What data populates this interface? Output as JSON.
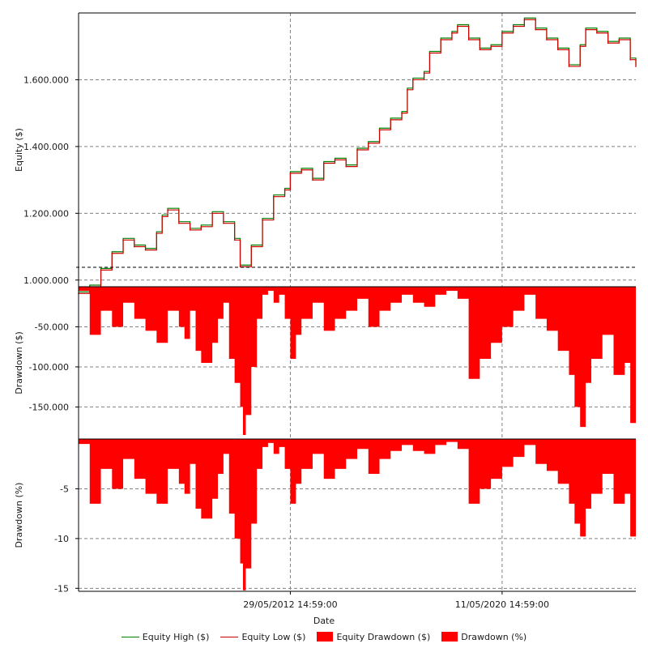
{
  "chart_data": {
    "type": "line",
    "xlabel": "Date",
    "x_ticks": [
      "29/05/2012 14:59:00",
      "11/05/2020 14:59:00"
    ],
    "x_tick_positions": [
      0.38,
      0.76
    ],
    "colors": {
      "equity_high": "#008000",
      "equity_low": "#cc0000",
      "drawdown_fill": "#ff0000",
      "grid": "#808080"
    },
    "panels": [
      {
        "id": "equity",
        "ylabel": "Equity ($)",
        "ylim": [
          980000,
          1800000
        ],
        "yticks": [
          1000000,
          1200000,
          1400000,
          1600000
        ],
        "ytick_labels": [
          "1.000.000",
          "1.200.000",
          "1.400.000",
          "1.600.000"
        ],
        "series": [
          {
            "name": "Equity High ($)",
            "color_key": "equity_high"
          },
          {
            "name": "Equity Low ($)",
            "color_key": "equity_low"
          }
        ],
        "points": [
          [
            0.0,
            960000
          ],
          [
            0.02,
            980000
          ],
          [
            0.04,
            1030000
          ],
          [
            0.06,
            1080000
          ],
          [
            0.08,
            1120000
          ],
          [
            0.1,
            1100000
          ],
          [
            0.12,
            1090000
          ],
          [
            0.14,
            1140000
          ],
          [
            0.15,
            1190000
          ],
          [
            0.16,
            1210000
          ],
          [
            0.18,
            1170000
          ],
          [
            0.2,
            1150000
          ],
          [
            0.22,
            1160000
          ],
          [
            0.24,
            1200000
          ],
          [
            0.26,
            1170000
          ],
          [
            0.28,
            1120000
          ],
          [
            0.29,
            1040000
          ],
          [
            0.31,
            1100000
          ],
          [
            0.33,
            1180000
          ],
          [
            0.35,
            1250000
          ],
          [
            0.37,
            1270000
          ],
          [
            0.38,
            1320000
          ],
          [
            0.4,
            1330000
          ],
          [
            0.42,
            1300000
          ],
          [
            0.44,
            1350000
          ],
          [
            0.46,
            1360000
          ],
          [
            0.48,
            1340000
          ],
          [
            0.5,
            1390000
          ],
          [
            0.52,
            1410000
          ],
          [
            0.54,
            1450000
          ],
          [
            0.56,
            1480000
          ],
          [
            0.58,
            1500000
          ],
          [
            0.59,
            1570000
          ],
          [
            0.6,
            1600000
          ],
          [
            0.62,
            1620000
          ],
          [
            0.63,
            1680000
          ],
          [
            0.65,
            1720000
          ],
          [
            0.67,
            1740000
          ],
          [
            0.68,
            1760000
          ],
          [
            0.7,
            1720000
          ],
          [
            0.72,
            1690000
          ],
          [
            0.74,
            1700000
          ],
          [
            0.76,
            1740000
          ],
          [
            0.78,
            1760000
          ],
          [
            0.8,
            1780000
          ],
          [
            0.82,
            1750000
          ],
          [
            0.84,
            1720000
          ],
          [
            0.86,
            1690000
          ],
          [
            0.88,
            1640000
          ],
          [
            0.9,
            1700000
          ],
          [
            0.91,
            1750000
          ],
          [
            0.93,
            1740000
          ],
          [
            0.95,
            1710000
          ],
          [
            0.97,
            1720000
          ],
          [
            0.99,
            1660000
          ],
          [
            1.0,
            1640000
          ]
        ]
      },
      {
        "id": "drawdown_usd",
        "ylabel": "Drawdown ($)",
        "ylim": [
          -190000,
          0
        ],
        "yticks": [
          -50000,
          -100000,
          -150000
        ],
        "ytick_labels": [
          "-50.000",
          "-100.000",
          "-150.000"
        ],
        "series": [
          {
            "name": "Equity Drawdown ($)",
            "color_key": "drawdown_fill"
          }
        ],
        "points": [
          [
            0.0,
            -5000
          ],
          [
            0.02,
            -60000
          ],
          [
            0.04,
            -30000
          ],
          [
            0.06,
            -50000
          ],
          [
            0.08,
            -20000
          ],
          [
            0.1,
            -40000
          ],
          [
            0.12,
            -55000
          ],
          [
            0.14,
            -70000
          ],
          [
            0.16,
            -30000
          ],
          [
            0.18,
            -50000
          ],
          [
            0.19,
            -65000
          ],
          [
            0.2,
            -30000
          ],
          [
            0.21,
            -80000
          ],
          [
            0.22,
            -95000
          ],
          [
            0.24,
            -70000
          ],
          [
            0.25,
            -40000
          ],
          [
            0.26,
            -20000
          ],
          [
            0.27,
            -90000
          ],
          [
            0.28,
            -120000
          ],
          [
            0.29,
            -150000
          ],
          [
            0.295,
            -185000
          ],
          [
            0.3,
            -160000
          ],
          [
            0.31,
            -100000
          ],
          [
            0.32,
            -40000
          ],
          [
            0.33,
            -10000
          ],
          [
            0.34,
            -5000
          ],
          [
            0.35,
            -20000
          ],
          [
            0.36,
            -10000
          ],
          [
            0.37,
            -40000
          ],
          [
            0.38,
            -90000
          ],
          [
            0.39,
            -60000
          ],
          [
            0.4,
            -40000
          ],
          [
            0.42,
            -20000
          ],
          [
            0.44,
            -55000
          ],
          [
            0.46,
            -40000
          ],
          [
            0.48,
            -30000
          ],
          [
            0.5,
            -15000
          ],
          [
            0.52,
            -50000
          ],
          [
            0.54,
            -30000
          ],
          [
            0.56,
            -20000
          ],
          [
            0.58,
            -10000
          ],
          [
            0.6,
            -20000
          ],
          [
            0.62,
            -25000
          ],
          [
            0.64,
            -10000
          ],
          [
            0.66,
            -5000
          ],
          [
            0.68,
            -15000
          ],
          [
            0.7,
            -115000
          ],
          [
            0.72,
            -90000
          ],
          [
            0.74,
            -70000
          ],
          [
            0.76,
            -50000
          ],
          [
            0.78,
            -30000
          ],
          [
            0.8,
            -10000
          ],
          [
            0.82,
            -40000
          ],
          [
            0.84,
            -55000
          ],
          [
            0.86,
            -80000
          ],
          [
            0.88,
            -110000
          ],
          [
            0.89,
            -150000
          ],
          [
            0.9,
            -175000
          ],
          [
            0.91,
            -120000
          ],
          [
            0.92,
            -90000
          ],
          [
            0.94,
            -60000
          ],
          [
            0.96,
            -110000
          ],
          [
            0.98,
            -95000
          ],
          [
            0.99,
            -170000
          ],
          [
            1.0,
            -160000
          ]
        ]
      },
      {
        "id": "drawdown_pct",
        "ylabel": "Drawdown (%)",
        "ylim": [
          -15.3,
          0
        ],
        "yticks": [
          -5,
          -10,
          -15
        ],
        "ytick_labels": [
          "-5",
          "-10",
          "-15"
        ],
        "series": [
          {
            "name": "Drawdown (%)",
            "color_key": "drawdown_fill"
          }
        ],
        "points": [
          [
            0.0,
            -0.5
          ],
          [
            0.02,
            -6.5
          ],
          [
            0.04,
            -3.0
          ],
          [
            0.06,
            -5.0
          ],
          [
            0.08,
            -2.0
          ],
          [
            0.1,
            -4.0
          ],
          [
            0.12,
            -5.5
          ],
          [
            0.14,
            -6.5
          ],
          [
            0.16,
            -3.0
          ],
          [
            0.18,
            -4.5
          ],
          [
            0.19,
            -5.5
          ],
          [
            0.2,
            -2.5
          ],
          [
            0.21,
            -7.0
          ],
          [
            0.22,
            -8.0
          ],
          [
            0.24,
            -6.0
          ],
          [
            0.25,
            -3.5
          ],
          [
            0.26,
            -1.5
          ],
          [
            0.27,
            -7.5
          ],
          [
            0.28,
            -10.0
          ],
          [
            0.29,
            -12.5
          ],
          [
            0.295,
            -15.2
          ],
          [
            0.3,
            -13.0
          ],
          [
            0.31,
            -8.5
          ],
          [
            0.32,
            -3.0
          ],
          [
            0.33,
            -0.8
          ],
          [
            0.34,
            -0.4
          ],
          [
            0.35,
            -1.5
          ],
          [
            0.36,
            -0.8
          ],
          [
            0.37,
            -3.0
          ],
          [
            0.38,
            -6.5
          ],
          [
            0.39,
            -4.5
          ],
          [
            0.4,
            -3.0
          ],
          [
            0.42,
            -1.5
          ],
          [
            0.44,
            -4.0
          ],
          [
            0.46,
            -3.0
          ],
          [
            0.48,
            -2.0
          ],
          [
            0.5,
            -1.0
          ],
          [
            0.52,
            -3.5
          ],
          [
            0.54,
            -2.0
          ],
          [
            0.56,
            -1.2
          ],
          [
            0.58,
            -0.6
          ],
          [
            0.6,
            -1.2
          ],
          [
            0.62,
            -1.5
          ],
          [
            0.64,
            -0.6
          ],
          [
            0.66,
            -0.3
          ],
          [
            0.68,
            -1.0
          ],
          [
            0.7,
            -6.5
          ],
          [
            0.72,
            -5.0
          ],
          [
            0.74,
            -4.0
          ],
          [
            0.76,
            -2.8
          ],
          [
            0.78,
            -1.8
          ],
          [
            0.8,
            -0.6
          ],
          [
            0.82,
            -2.5
          ],
          [
            0.84,
            -3.2
          ],
          [
            0.86,
            -4.5
          ],
          [
            0.88,
            -6.5
          ],
          [
            0.89,
            -8.5
          ],
          [
            0.9,
            -9.8
          ],
          [
            0.91,
            -7.0
          ],
          [
            0.92,
            -5.5
          ],
          [
            0.94,
            -3.5
          ],
          [
            0.96,
            -6.5
          ],
          [
            0.98,
            -5.5
          ],
          [
            0.99,
            -9.8
          ],
          [
            1.0,
            -9.3
          ]
        ]
      }
    ],
    "legend": [
      {
        "label": "Equity High ($)",
        "kind": "line",
        "color_key": "equity_high"
      },
      {
        "label": "Equity Low ($)",
        "kind": "line",
        "color_key": "equity_low"
      },
      {
        "label": "Equity Drawdown ($)",
        "kind": "box",
        "color_key": "drawdown_fill"
      },
      {
        "label": "Drawdown (%)",
        "kind": "box",
        "color_key": "drawdown_fill"
      }
    ],
    "legend_placement": "bottom-center",
    "grid": true
  }
}
